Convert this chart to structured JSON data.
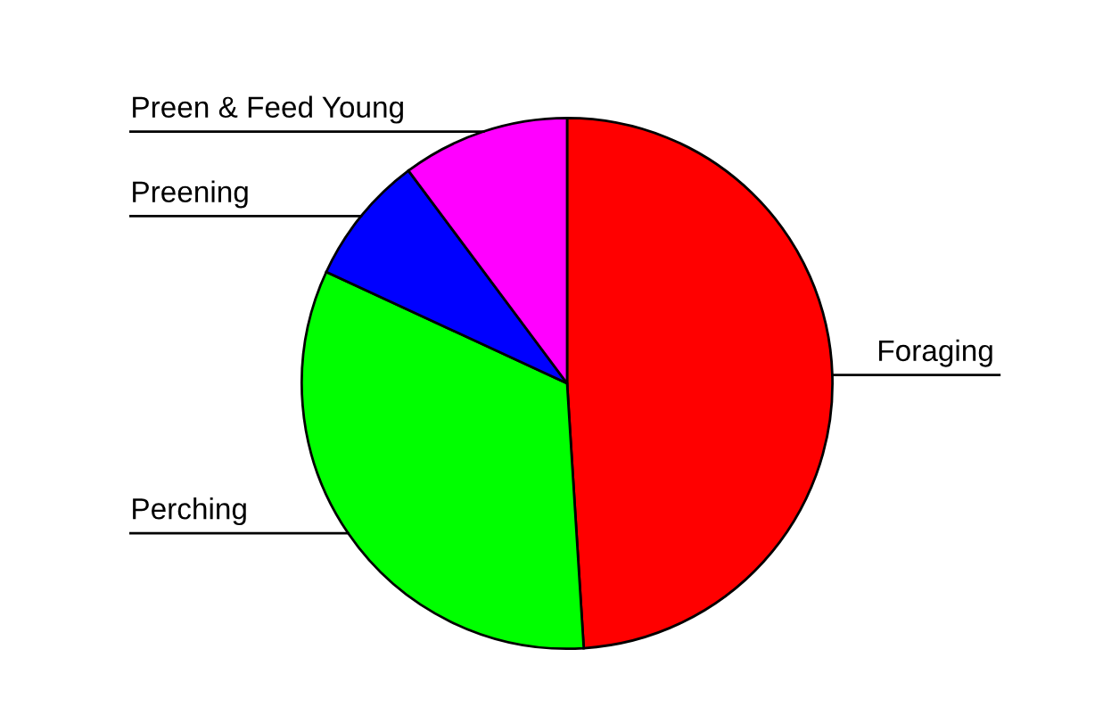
{
  "chart_data": {
    "type": "pie",
    "categories": [
      "Foraging",
      "Perching",
      "Preening",
      "Preen & Feed Young"
    ],
    "values": [
      49.0,
      32.9,
      7.9,
      10.2
    ],
    "colors": [
      "#ff0000",
      "#00ff00",
      "#0000ff",
      "#ff00ff"
    ],
    "legend": false
  }
}
